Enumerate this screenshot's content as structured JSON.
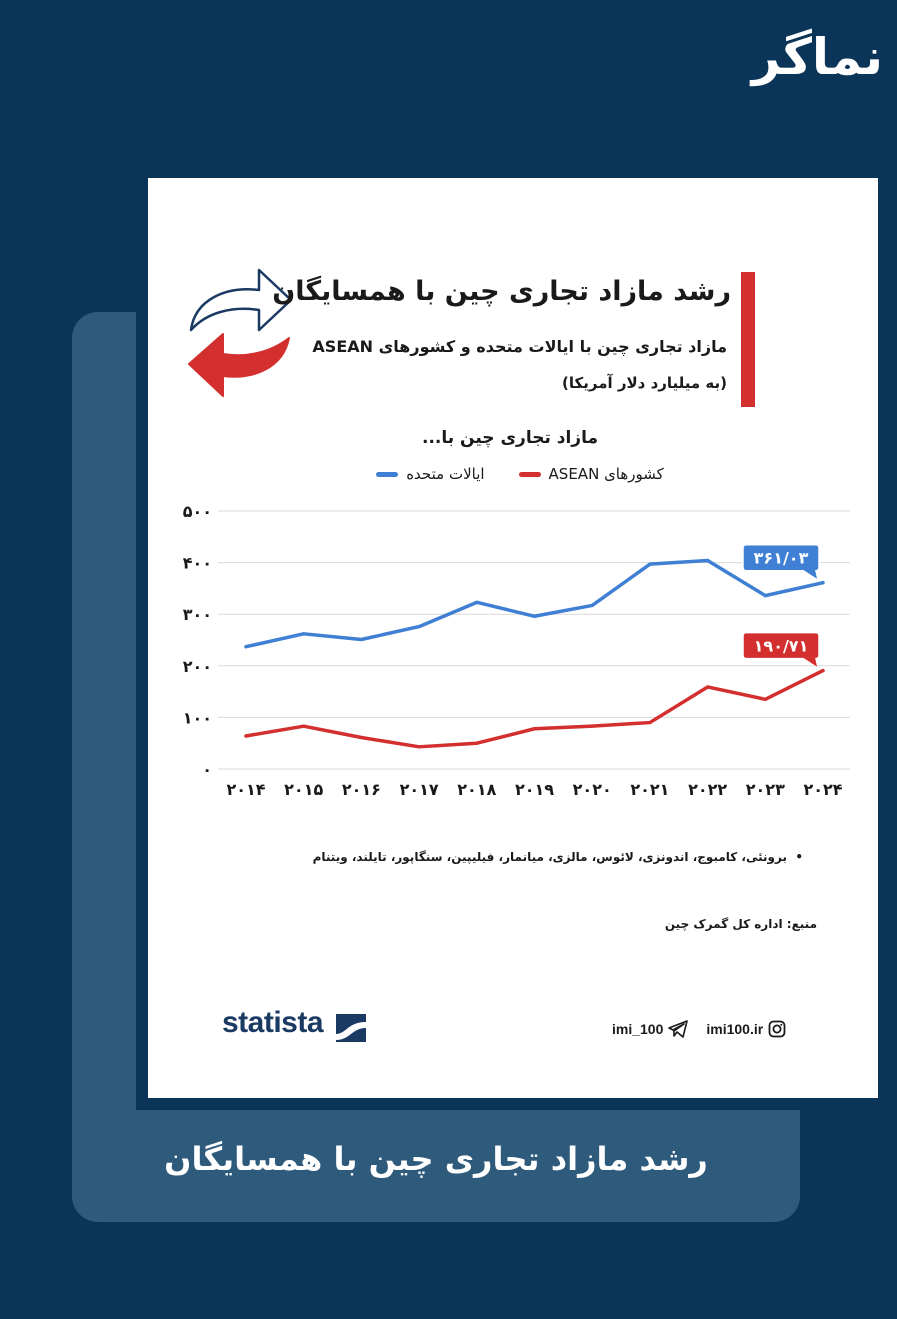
{
  "brand": {
    "logo_text": "نماگر"
  },
  "header": {
    "title": "رشد مازاد تجاری چین با همسایگان",
    "subtitle": "مازاد تجاری چین با ایالات متحده و کشورهای ASEAN",
    "unit": "(به میلیارد دلار آمریکا)"
  },
  "chart_data": {
    "type": "line",
    "title": "مازاد تجاری چین با...",
    "x": [
      "۲۰۱۴",
      "۲۰۱۵",
      "۲۰۱۶",
      "۲۰۱۷",
      "۲۰۱۸",
      "۲۰۱۹",
      "۲۰۲۰",
      "۲۰۲۱",
      "۲۰۲۲",
      "۲۰۲۳",
      "۲۰۲۴"
    ],
    "yticks": [
      "۰",
      "۱۰۰",
      "۲۰۰",
      "۳۰۰",
      "۴۰۰",
      "۵۰۰"
    ],
    "ylim": [
      0,
      500
    ],
    "grid": true,
    "legend": "top",
    "series": [
      {
        "name": "ایالات متحده",
        "color": "#3f7fd4",
        "values": [
          237,
          262,
          251,
          276,
          323,
          296,
          317,
          397,
          404,
          336,
          361.03
        ],
        "end_label": "۳۶۱/۰۳"
      },
      {
        "name": "کشورهای ASEAN",
        "color": "#d32f2f",
        "values": [
          64,
          83,
          61,
          43,
          50,
          78,
          83,
          90,
          159,
          135,
          190.71
        ],
        "end_label": "۱۹۰/۷۱"
      }
    ]
  },
  "footer": {
    "note": "برونئی، کامبوج، اندونزی، لائوس، مالزی، میانمار، فیلیپین، سنگاپور، تایلند، ویتنام",
    "source": "منبع: اداره کل گمرک چین",
    "statista": "statista",
    "instagram": "imi100.ir",
    "telegram": "imi_100"
  },
  "caption": "رشد مازاد تجاری چین با همسایگان",
  "colors": {
    "background": "#0b3558",
    "panel": "#2e5a7c",
    "accent_red": "#d32f2f",
    "accent_blue": "#3f7fd4"
  }
}
